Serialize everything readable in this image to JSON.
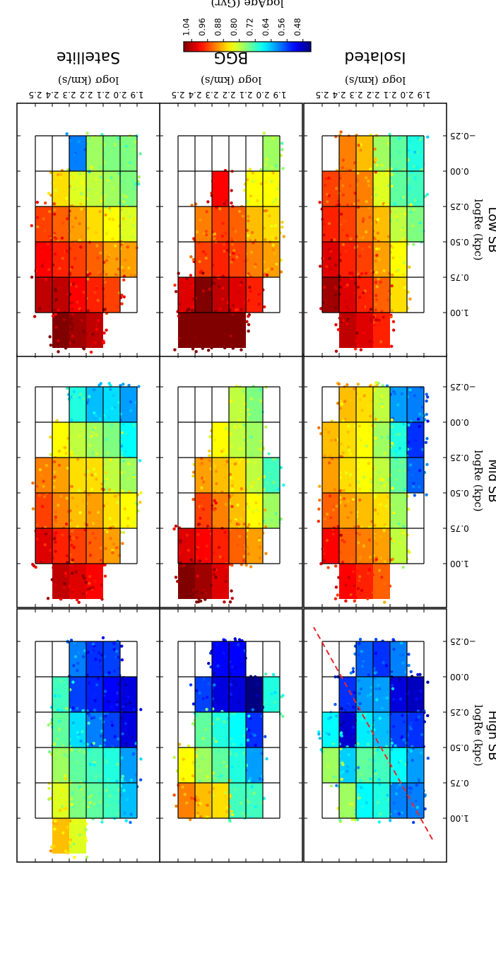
{
  "figure": {
    "colorbar": {
      "label": "logAge (Gyr)",
      "ticks": [
        "1.04",
        "0.96",
        "0.88",
        "0.80",
        "0.72",
        "0.64",
        "0.56",
        "0.48"
      ],
      "range": [
        0.44,
        1.08
      ],
      "colormap": "jet_r"
    }
  },
  "chart_data": [
    {
      "type": "heatmap",
      "row": "High SB",
      "column": "Isolated",
      "xlabel": "logσ (km/s)",
      "ylabel": "logRe (kpc)",
      "xticks": [
        "1.9",
        "2.0",
        "2.1",
        "2.2",
        "2.3",
        "2.4",
        "2.5"
      ],
      "yticks": [
        "1.00",
        "0.75",
        "0.50",
        "0.25",
        "0.00",
        "−0.25"
      ],
      "xlim": [
        1.85,
        2.6
      ],
      "ylim": [
        -0.35,
        1.15
      ],
      "x_bins": [
        1.9,
        2.0,
        2.1,
        2.2,
        2.3,
        2.4,
        2.5
      ],
      "y_bins": [
        -0.25,
        0.0,
        0.25,
        0.5,
        0.75,
        1.0
      ],
      "cell_logage": [
        [
          null,
          0.48,
          0.55,
          0.62,
          0.6,
          null
        ],
        [
          0.6,
          0.5,
          0.56,
          0.68,
          0.6,
          null
        ],
        [
          0.55,
          0.62,
          0.64,
          0.72,
          0.7,
          null
        ],
        [
          0.58,
          0.62,
          0.67,
          0.74,
          0.68,
          null
        ],
        [
          null,
          0.55,
          0.49,
          0.65,
          0.78,
          null
        ],
        [
          null,
          null,
          0.68,
          0.78,
          null,
          null
        ]
      ],
      "reference_line": {
        "style": "dashed",
        "color": "#e8262b",
        "points": [
          [
            1.85,
            1.15
          ],
          [
            2.55,
            -0.35
          ]
        ]
      }
    },
    {
      "type": "heatmap",
      "row": "Mid SB",
      "column": "Isolated",
      "xlabel": "logσ (km/s)",
      "ylabel": "logRe (kpc)",
      "xticks": [
        "1.9",
        "2.0",
        "2.1",
        "2.2",
        "2.3",
        "2.4",
        "2.5"
      ],
      "yticks": [
        "1.00",
        "0.75",
        "0.50",
        "0.25",
        "0.00",
        "−0.25"
      ],
      "xlim": [
        1.85,
        2.6
      ],
      "ylim": [
        -0.35,
        1.15
      ],
      "x_bins": [
        1.9,
        2.0,
        2.1,
        2.2,
        2.3,
        2.4,
        2.5
      ],
      "y_bins": [
        -0.25,
        0.0,
        0.25,
        0.5,
        0.75,
        1.0
      ],
      "cell_logage": [
        [
          0.6,
          0.55,
          0.58,
          null,
          null,
          null
        ],
        [
          0.62,
          0.7,
          0.74,
          0.78,
          0.8,
          null
        ],
        [
          0.8,
          0.78,
          0.8,
          0.86,
          0.9,
          0.94
        ],
        [
          0.86,
          0.84,
          0.84,
          0.88,
          0.92,
          0.98
        ],
        [
          0.88,
          0.86,
          0.86,
          0.9,
          0.94,
          1.0
        ],
        [
          null,
          0.88,
          0.9,
          0.94,
          1.0,
          null
        ]
      ]
    },
    {
      "type": "heatmap",
      "row": "Low SB",
      "column": "Isolated",
      "xlabel": "logσ (km/s)",
      "ylabel": "logRe (kpc)",
      "xticks": [
        "1.9",
        "2.0",
        "2.1",
        "2.2",
        "2.3",
        "2.4",
        "2.5"
      ],
      "yticks": [
        "1.00",
        "0.75",
        "0.50",
        "0.25",
        "0.00",
        "−0.25"
      ],
      "xlim": [
        1.85,
        2.6
      ],
      "ylim": [
        -0.35,
        1.15
      ],
      "x_bins": [
        1.9,
        2.0,
        2.1,
        2.2,
        2.3,
        2.4,
        2.5
      ],
      "y_bins": [
        -0.25,
        0.0,
        0.25,
        0.5,
        0.75,
        1.0
      ],
      "cell_logage": [
        [
          0.7,
          0.72,
          0.76,
          null,
          null,
          null
        ],
        [
          0.74,
          0.74,
          0.8,
          0.84,
          0.86,
          null
        ],
        [
          0.78,
          0.82,
          0.88,
          0.9,
          0.94,
          0.98
        ],
        [
          0.88,
          0.92,
          0.92,
          0.96,
          0.98,
          1.02
        ],
        [
          0.92,
          0.94,
          0.96,
          0.98,
          1.02,
          1.04
        ],
        [
          null,
          0.96,
          0.98,
          1.02,
          1.06,
          null
        ]
      ]
    },
    {
      "type": "heatmap",
      "row": "High SB",
      "column": "BGG",
      "xlabel": "logσ (km/s)",
      "ylabel": "",
      "xticks": [
        "1.9",
        "2.0",
        "2.1",
        "2.2",
        "2.3",
        "2.4",
        "2.5"
      ],
      "yticks": [],
      "xlim": [
        1.85,
        2.6
      ],
      "ylim": [
        -0.35,
        1.15
      ],
      "x_bins": [
        1.9,
        2.0,
        2.1,
        2.2,
        2.3,
        2.4,
        2.5
      ],
      "y_bins": [
        -0.25,
        0.0,
        0.25,
        0.5,
        0.75,
        1.0
      ],
      "cell_logage": [
        [
          null,
          0.7,
          null,
          null,
          null,
          null
        ],
        [
          null,
          0.44,
          0.55,
          0.62,
          0.72,
          null
        ],
        [
          0.52,
          0.5,
          0.68,
          0.7,
          0.72,
          null
        ],
        [
          0.52,
          0.5,
          0.7,
          0.74,
          0.86,
          null
        ],
        [
          null,
          0.56,
          0.74,
          0.78,
          0.88,
          null
        ],
        [
          null,
          null,
          null,
          0.84,
          0.92,
          null
        ]
      ]
    },
    {
      "type": "heatmap",
      "row": "Mid SB",
      "column": "BGG",
      "xlabel": "logσ (km/s)",
      "ylabel": "",
      "xticks": [
        "1.9",
        "2.0",
        "2.1",
        "2.2",
        "2.3",
        "2.4",
        "2.5"
      ],
      "yticks": [],
      "xlim": [
        1.85,
        2.6
      ],
      "ylim": [
        -0.35,
        1.15
      ],
      "x_bins": [
        1.9,
        2.0,
        2.1,
        2.2,
        2.3,
        2.4,
        2.5
      ],
      "y_bins": [
        -0.25,
        0.0,
        0.25,
        0.5,
        0.75,
        1.0
      ],
      "cell_logage": [
        [
          null,
          null,
          0.72,
          0.78,
          null,
          null
        ],
        [
          0.76,
          0.78,
          0.8,
          0.84,
          0.9,
          null
        ],
        [
          0.8,
          0.8,
          0.86,
          0.88,
          0.94,
          null
        ],
        [
          null,
          0.84,
          0.88,
          0.92,
          0.98,
          1.02
        ],
        [
          null,
          null,
          0.9,
          0.96,
          1.0,
          1.06
        ],
        [
          null,
          null,
          null,
          null,
          1.02,
          1.08
        ]
      ]
    },
    {
      "type": "heatmap",
      "row": "Low SB",
      "column": "BGG",
      "xlabel": "logσ (km/s)",
      "ylabel": "",
      "xticks": [
        "1.9",
        "2.0",
        "2.1",
        "2.2",
        "2.3",
        "2.4",
        "2.5"
      ],
      "yticks": [],
      "xlim": [
        1.85,
        2.6
      ],
      "ylim": [
        -0.35,
        1.15
      ],
      "x_bins": [
        1.9,
        2.0,
        2.1,
        2.2,
        2.3,
        2.4,
        2.5
      ],
      "y_bins": [
        -0.25,
        0.0,
        0.25,
        0.5,
        0.75,
        1.0
      ],
      "cell_logage": [
        [
          0.78,
          0.84,
          0.86,
          0.9,
          null,
          null
        ],
        [
          null,
          0.84,
          0.88,
          0.92,
          0.98,
          null
        ],
        [
          null,
          null,
          0.94,
          0.96,
          1.02,
          1.08
        ],
        [
          null,
          1.0,
          0.96,
          0.98,
          1.04,
          1.12
        ],
        [
          null,
          null,
          0.92,
          0.96,
          1.08,
          1.14
        ],
        [
          null,
          null,
          null,
          null,
          1.02,
          1.1
        ]
      ]
    },
    {
      "type": "heatmap",
      "row": "High SB",
      "column": "Satellite",
      "xlabel": "logσ (km/s)",
      "ylabel": "",
      "xticks": [
        "1.9",
        "2.0",
        "2.1",
        "2.2",
        "2.3",
        "2.4",
        "2.5"
      ],
      "yticks": [],
      "xlim": [
        1.85,
        2.6
      ],
      "ylim": [
        -0.35,
        1.15
      ],
      "x_bins": [
        1.9,
        2.0,
        2.1,
        2.2,
        2.3,
        2.4,
        2.5
      ],
      "y_bins": [
        -0.25,
        0.0,
        0.25,
        0.5,
        0.75,
        1.0
      ],
      "cell_logage": [
        [
          null,
          0.5,
          0.5,
          0.62,
          0.64,
          null
        ],
        [
          0.56,
          0.52,
          0.56,
          0.7,
          0.72,
          null
        ],
        [
          0.55,
          0.54,
          0.6,
          0.72,
          0.74,
          null
        ],
        [
          0.6,
          0.56,
          0.66,
          0.74,
          0.76,
          0.82
        ],
        [
          null,
          0.72,
          0.74,
          0.78,
          0.82,
          0.88
        ],
        [
          null,
          null,
          null,
          null,
          null,
          null
        ]
      ]
    },
    {
      "type": "heatmap",
      "row": "Mid SB",
      "column": "Satellite",
      "xlabel": "logσ (km/s)",
      "ylabel": "",
      "xticks": [
        "1.9",
        "2.0",
        "2.1",
        "2.2",
        "2.3",
        "2.4",
        "2.5"
      ],
      "yticks": [],
      "xlim": [
        1.85,
        2.6
      ],
      "ylim": [
        -0.35,
        1.15
      ],
      "x_bins": [
        1.9,
        2.0,
        2.1,
        2.2,
        2.3,
        2.4,
        2.5
      ],
      "y_bins": [
        -0.25,
        0.0,
        0.25,
        0.5,
        0.75,
        1.0
      ],
      "cell_logage": [
        [
          0.62,
          0.68,
          0.78,
          0.84,
          null,
          null
        ],
        [
          0.66,
          0.76,
          0.8,
          0.86,
          0.9,
          null
        ],
        [
          0.64,
          0.78,
          0.86,
          0.9,
          0.94,
          1.0
        ],
        [
          0.7,
          0.8,
          0.86,
          0.88,
          0.96,
          1.02
        ],
        [
          null,
          0.84,
          0.9,
          0.92,
          0.98,
          1.04
        ],
        [
          null,
          null,
          0.92,
          0.96,
          1.02,
          null
        ]
      ]
    },
    {
      "type": "heatmap",
      "row": "Low SB",
      "column": "Satellite",
      "xlabel": "logσ (km/s)",
      "ylabel": "",
      "xticks": [
        "1.9",
        "2.0",
        "2.1",
        "2.2",
        "2.3",
        "2.4",
        "2.5"
      ],
      "yticks": [],
      "xlim": [
        1.85,
        2.6
      ],
      "ylim": [
        -0.35,
        1.15
      ],
      "x_bins": [
        1.9,
        2.0,
        2.1,
        2.2,
        2.3,
        2.4,
        2.5
      ],
      "y_bins": [
        -0.25,
        0.0,
        0.25,
        0.5,
        0.75,
        1.0
      ],
      "cell_logage": [
        [
          0.76,
          0.76,
          0.82,
          0.9,
          null,
          null
        ],
        [
          0.76,
          0.78,
          0.84,
          0.9,
          0.96,
          null
        ],
        [
          0.78,
          0.8,
          0.86,
          0.94,
          0.98,
          1.04
        ],
        [
          0.6,
          0.82,
          0.9,
          0.96,
          1.0,
          1.06
        ],
        [
          null,
          0.86,
          0.94,
          0.98,
          1.04,
          1.08
        ],
        [
          null,
          null,
          0.96,
          1.0,
          1.04,
          null
        ]
      ]
    }
  ],
  "labels": {
    "columns": [
      "Isolated",
      "BGG",
      "Satellite"
    ],
    "rows": [
      "High SB",
      "Mid SB",
      "Low SB"
    ],
    "xlabel": "logσ (km/s)",
    "ylabel": "logRe (kpc)",
    "xticks": [
      "1.9",
      "2.0",
      "2.1",
      "2.2",
      "2.3",
      "2.4",
      "2.5"
    ],
    "yticks": [
      "1.00",
      "0.75",
      "0.50",
      "0.25",
      "0.00",
      "−0.25"
    ]
  }
}
